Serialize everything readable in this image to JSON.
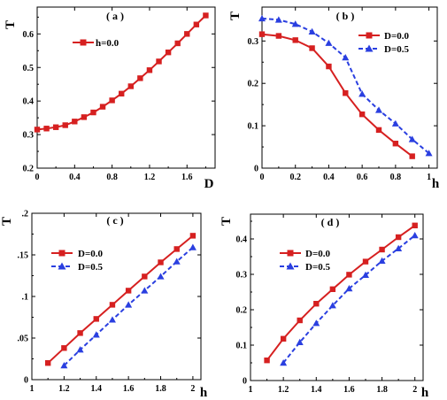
{
  "chart_data": [
    {
      "type": "line",
      "title": "( a )",
      "xlabel": "D",
      "ylabel": "T",
      "xlim": [
        0,
        1.9
      ],
      "ylim": [
        0.2,
        0.68
      ],
      "xticks": [
        0,
        0.4,
        0.8,
        1.2,
        1.6
      ],
      "yticks": [
        0.2,
        0.3,
        0.4,
        0.5,
        0.6
      ],
      "legend": "top-left",
      "series": [
        {
          "name": "h=0.0",
          "color": "#d62020",
          "marker": "square",
          "dash": "solid",
          "x": [
            0,
            0.1,
            0.2,
            0.3,
            0.4,
            0.5,
            0.6,
            0.7,
            0.8,
            0.9,
            1.0,
            1.1,
            1.2,
            1.3,
            1.4,
            1.5,
            1.6,
            1.7,
            1.8
          ],
          "y": [
            0.315,
            0.318,
            0.322,
            0.328,
            0.339,
            0.352,
            0.366,
            0.383,
            0.402,
            0.422,
            0.444,
            0.468,
            0.492,
            0.518,
            0.545,
            0.572,
            0.6,
            0.628,
            0.655
          ]
        }
      ]
    },
    {
      "type": "line",
      "title": "( b )",
      "xlabel": "h",
      "ylabel": "T",
      "xlim": [
        0,
        1.05
      ],
      "ylim": [
        0,
        0.38
      ],
      "xticks": [
        0,
        0.2,
        0.4,
        0.6,
        0.8,
        1
      ],
      "yticks": [
        0,
        0.1,
        0.2,
        0.3
      ],
      "legend": "top-right",
      "series": [
        {
          "name": "D=0.0",
          "color": "#d62020",
          "marker": "square",
          "dash": "solid",
          "x": [
            0,
            0.1,
            0.2,
            0.3,
            0.4,
            0.5,
            0.6,
            0.7,
            0.8,
            0.9
          ],
          "y": [
            0.316,
            0.312,
            0.302,
            0.283,
            0.24,
            0.177,
            0.127,
            0.09,
            0.058,
            0.028
          ]
        },
        {
          "name": "D=0.5",
          "color": "#2a3fe0",
          "marker": "triangle",
          "dash": "dashed",
          "x": [
            0,
            0.1,
            0.2,
            0.3,
            0.4,
            0.5,
            0.6,
            0.7,
            0.8,
            0.9,
            1.0
          ],
          "y": [
            0.353,
            0.35,
            0.34,
            0.322,
            0.295,
            0.261,
            0.175,
            0.137,
            0.105,
            0.068,
            0.035
          ]
        }
      ]
    },
    {
      "type": "line",
      "title": "( c )",
      "xlabel": "h",
      "ylabel": "T",
      "xlim": [
        1.0,
        2.05
      ],
      "ylim": [
        0,
        0.2
      ],
      "xticks": [
        1,
        1.2,
        1.4,
        1.6,
        1.8,
        2
      ],
      "yticks": [
        0,
        0.05,
        0.1,
        0.15,
        0.2
      ],
      "legend": "top-left",
      "series": [
        {
          "name": "D=0.0",
          "color": "#d62020",
          "marker": "square",
          "dash": "solid",
          "x": [
            1.1,
            1.2,
            1.3,
            1.4,
            1.5,
            1.6,
            1.7,
            1.8,
            1.9,
            2.0
          ],
          "y": [
            0.02,
            0.038,
            0.056,
            0.073,
            0.09,
            0.107,
            0.124,
            0.141,
            0.157,
            0.173
          ]
        },
        {
          "name": "D=0.5",
          "color": "#2a3fe0",
          "marker": "triangle",
          "dash": "dashed",
          "x": [
            1.2,
            1.3,
            1.4,
            1.5,
            1.6,
            1.7,
            1.8,
            1.9,
            2.0
          ],
          "y": [
            0.017,
            0.036,
            0.054,
            0.072,
            0.09,
            0.107,
            0.124,
            0.142,
            0.159
          ]
        }
      ]
    },
    {
      "type": "line",
      "title": "( d )",
      "xlabel": "h",
      "ylabel": "T",
      "xlim": [
        1.0,
        2.05
      ],
      "ylim": [
        0,
        0.47
      ],
      "xticks": [
        1,
        1.2,
        1.4,
        1.6,
        1.8,
        2
      ],
      "yticks": [
        0,
        0.1,
        0.2,
        0.3,
        0.4
      ],
      "legend": "top-left",
      "series": [
        {
          "name": "D=0.0",
          "color": "#d62020",
          "marker": "square",
          "dash": "solid",
          "x": [
            1.1,
            1.2,
            1.3,
            1.4,
            1.5,
            1.6,
            1.7,
            1.8,
            1.9,
            2.0
          ],
          "y": [
            0.057,
            0.118,
            0.17,
            0.217,
            0.258,
            0.299,
            0.336,
            0.37,
            0.405,
            0.438
          ]
        },
        {
          "name": "D=0.5",
          "color": "#2a3fe0",
          "marker": "triangle",
          "dash": "dashed",
          "x": [
            1.2,
            1.3,
            1.4,
            1.5,
            1.6,
            1.7,
            1.8,
            1.9,
            2.0
          ],
          "y": [
            0.05,
            0.108,
            0.162,
            0.212,
            0.26,
            0.298,
            0.338,
            0.373,
            0.41
          ]
        }
      ]
    }
  ]
}
